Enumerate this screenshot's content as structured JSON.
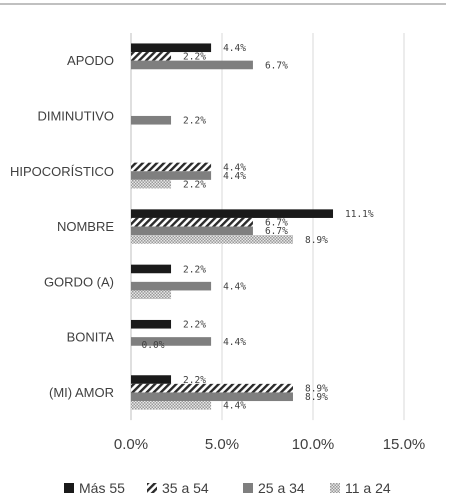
{
  "chart_data": {
    "type": "bar",
    "orientation": "horizontal",
    "categories": [
      "APODO",
      "DIMINUTIVO",
      "HIPOCORÍSTICO",
      "NOMBRE",
      "GORDO (A)",
      "BONITA",
      "(MI) AMOR"
    ],
    "series": [
      {
        "name": "Más 55",
        "color": "#1a1a1a",
        "pattern": "solid",
        "values": [
          4.4,
          null,
          null,
          11.1,
          2.2,
          2.2,
          2.2
        ],
        "labels": [
          "4.4%",
          "",
          "",
          "11.1%",
          "2.2%",
          "2.2%",
          "2.2%"
        ]
      },
      {
        "name": "35 a 54",
        "color": "#333333",
        "pattern": "diagonal-hatch",
        "values": [
          2.2,
          null,
          4.4,
          6.7,
          null,
          0.0,
          8.9
        ],
        "labels": [
          "2.2%",
          "",
          "4.4%",
          "6.7%",
          "",
          "0.0%",
          "8.9%"
        ]
      },
      {
        "name": "25 a 34",
        "color": "#7f7f7f",
        "pattern": "solid",
        "values": [
          6.7,
          2.2,
          4.4,
          6.7,
          4.4,
          4.4,
          8.9
        ],
        "labels": [
          "6.7%",
          "2.2%",
          "4.4%",
          "6.7%",
          "4.4%",
          "4.4%",
          "8.9%"
        ]
      },
      {
        "name": "11 a 24",
        "color": "#b0b0b0",
        "pattern": "dotted",
        "values": [
          null,
          null,
          2.2,
          8.9,
          2.2,
          null,
          4.4
        ],
        "labels": [
          "",
          "",
          "2.2%",
          "8.9%",
          "",
          "",
          "4.4%"
        ]
      }
    ],
    "xlim": [
      0,
      15
    ],
    "xticks": [
      "0.0%",
      "5.0%",
      "10.0%",
      "15.0%"
    ],
    "grid": true,
    "legend_position": "bottom"
  }
}
